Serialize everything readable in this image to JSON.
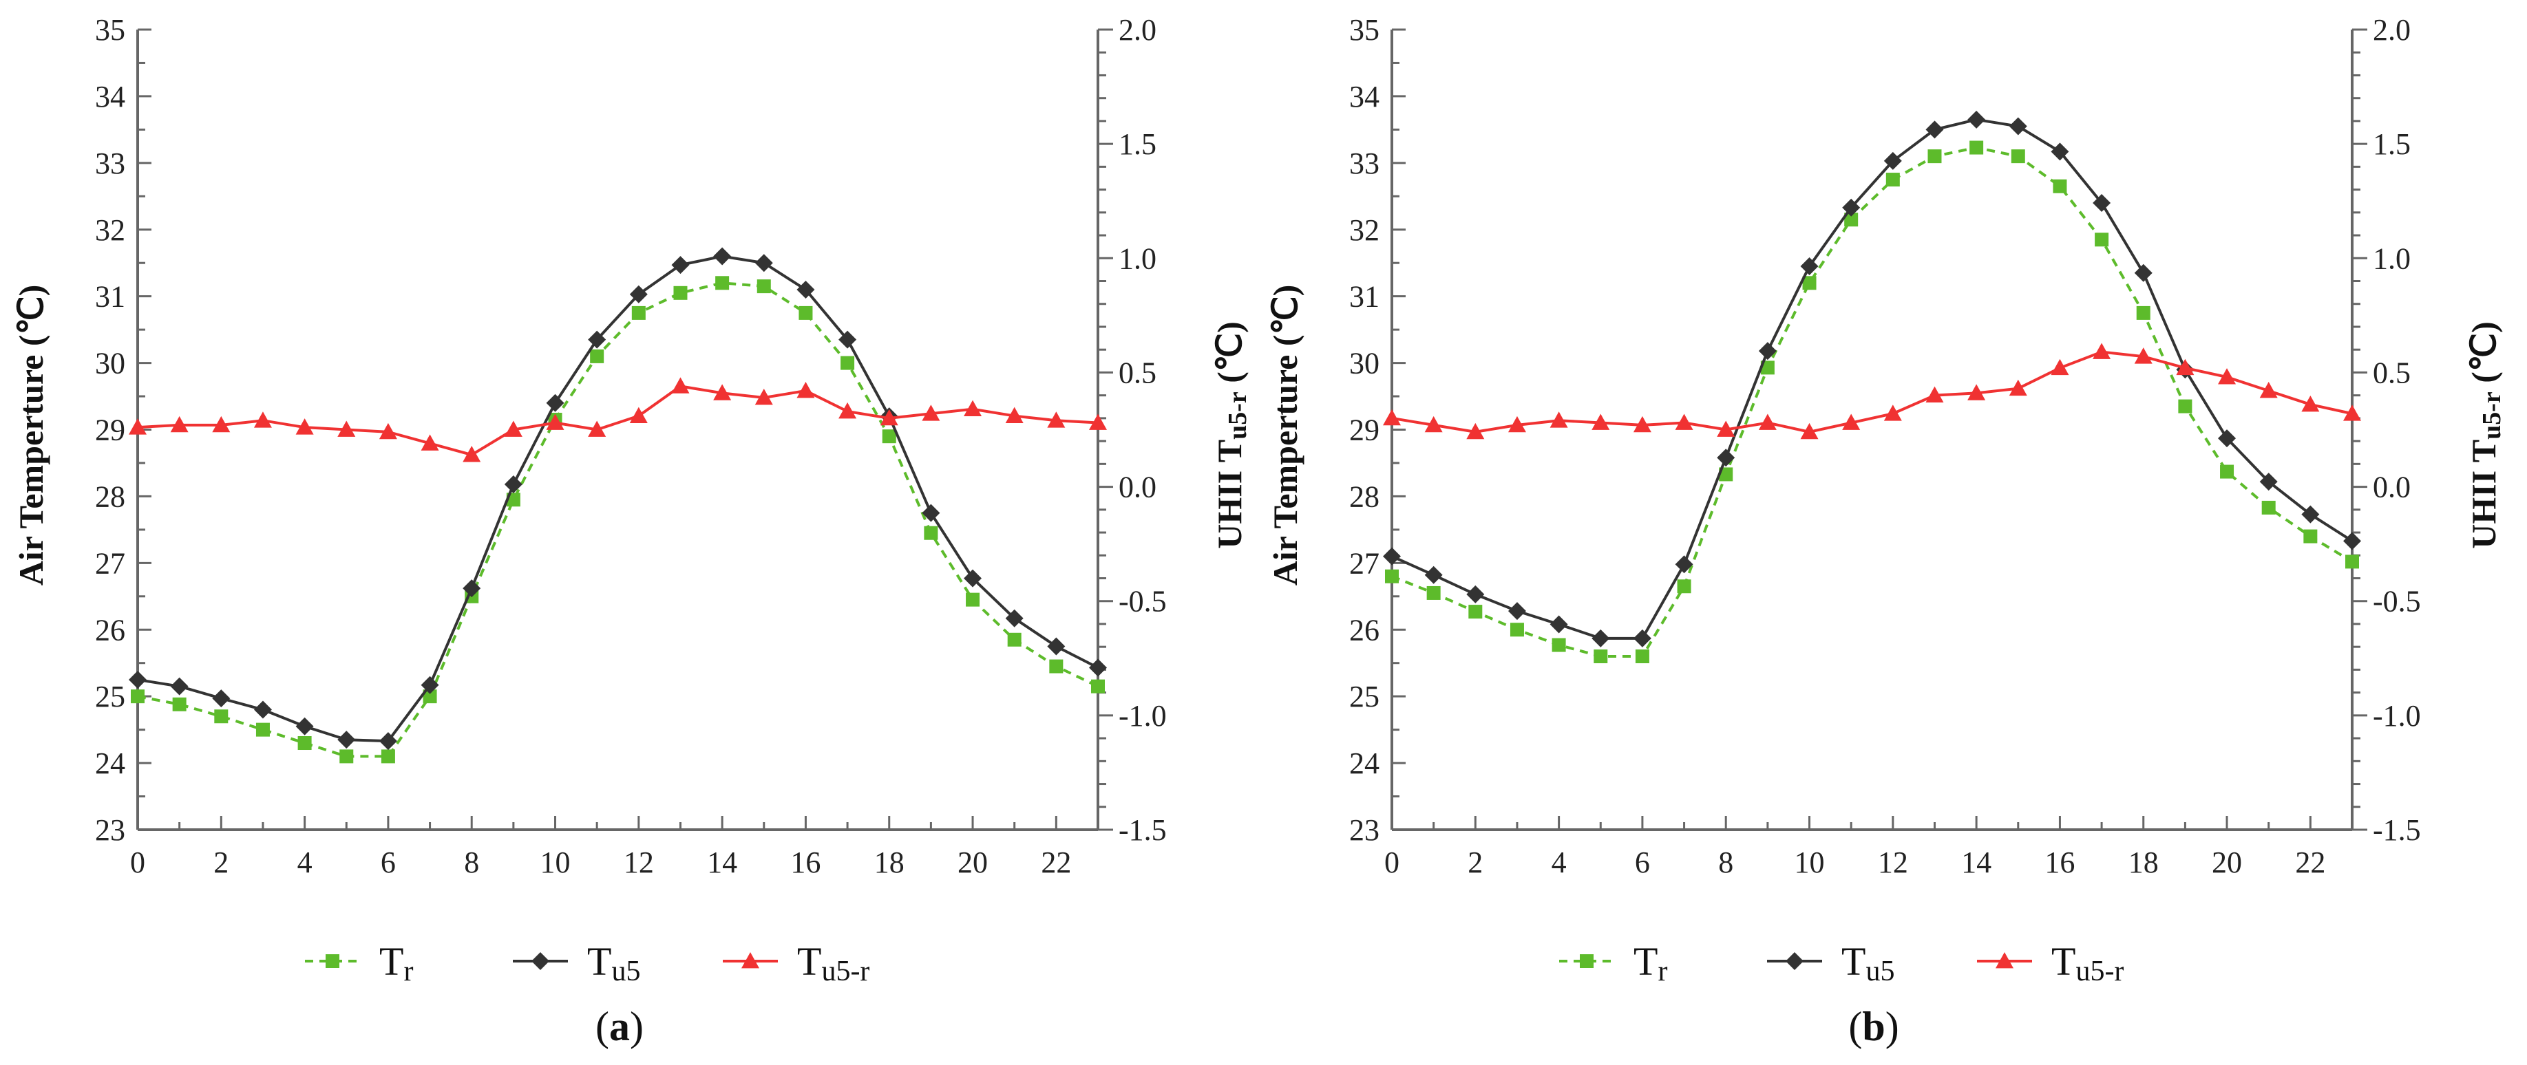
{
  "chart_data": [
    {
      "type": "line",
      "panel_label": "(a)",
      "panel_letter": "a",
      "xlabel": "",
      "ylabel": "Air Temperture (℃)",
      "ylabel_main": "Air Temperture (",
      "ylabel_unit": "℃)",
      "y2label": "UHII Tu5-r (℃)",
      "y2label_main": "UHII T",
      "y2label_sub": "u5-r",
      "y2label_unit": " (℃)",
      "xlim": [
        0,
        23
      ],
      "xticks": [
        0,
        2,
        4,
        6,
        8,
        10,
        12,
        14,
        16,
        18,
        20,
        22
      ],
      "ylim": [
        23,
        35
      ],
      "yticks": [
        23,
        24,
        25,
        26,
        27,
        28,
        29,
        30,
        31,
        32,
        33,
        34,
        35
      ],
      "y2lim": [
        -1.5,
        2.0
      ],
      "y2ticks": [
        "-1.5",
        "-1.0",
        "-0.5",
        "0.0",
        "0.5",
        "1.0",
        "1.5",
        "2.0"
      ],
      "grid": false,
      "x": [
        0,
        1,
        2,
        3,
        4,
        5,
        6,
        7,
        8,
        9,
        10,
        11,
        12,
        13,
        14,
        15,
        16,
        17,
        18,
        19,
        20,
        21,
        22,
        23
      ],
      "series": [
        {
          "name": "Tr",
          "base": "T",
          "sub": "r",
          "axis": "left",
          "color": "#5DBB2B",
          "marker": "square",
          "dashed": true,
          "values": [
            25.0,
            24.88,
            24.7,
            24.5,
            24.3,
            24.1,
            24.1,
            25.0,
            26.5,
            27.95,
            29.15,
            30.1,
            30.75,
            31.05,
            31.2,
            31.15,
            30.75,
            30.0,
            28.9,
            27.45,
            26.45,
            25.85,
            25.45,
            25.15
          ]
        },
        {
          "name": "Tu5",
          "base": "T",
          "sub": "u5",
          "axis": "left",
          "color": "#333333",
          "marker": "diamond",
          "dashed": false,
          "values": [
            25.25,
            25.15,
            24.97,
            24.8,
            24.55,
            24.35,
            24.33,
            25.17,
            26.62,
            28.18,
            29.4,
            30.35,
            31.03,
            31.47,
            31.6,
            31.5,
            31.1,
            30.35,
            29.2,
            27.75,
            26.77,
            26.17,
            25.75,
            25.43
          ]
        },
        {
          "name": "Tu5-r",
          "base": "T",
          "sub": "u5-r",
          "axis": "right",
          "color": "#F03232",
          "marker": "triangle",
          "dashed": false,
          "values": [
            0.26,
            0.27,
            0.27,
            0.29,
            0.26,
            0.25,
            0.24,
            0.19,
            0.14,
            0.25,
            0.28,
            0.25,
            0.31,
            0.44,
            0.41,
            0.39,
            0.42,
            0.33,
            0.3,
            0.32,
            0.34,
            0.31,
            0.29,
            0.28
          ]
        }
      ]
    },
    {
      "type": "line",
      "panel_label": "(b)",
      "panel_letter": "b",
      "xlabel": "",
      "ylabel": "Air Temperture (℃)",
      "ylabel_main": "Air Temperture (",
      "ylabel_unit": "℃)",
      "y2label": "UHII Tu5-r (℃)",
      "y2label_main": "UHII T",
      "y2label_sub": "u5-r",
      "y2label_unit": " (℃)",
      "xlim": [
        0,
        23
      ],
      "xticks": [
        0,
        2,
        4,
        6,
        8,
        10,
        12,
        14,
        16,
        18,
        20,
        22
      ],
      "ylim": [
        23,
        35
      ],
      "yticks": [
        23,
        24,
        25,
        26,
        27,
        28,
        29,
        30,
        31,
        32,
        33,
        34,
        35
      ],
      "y2lim": [
        -1.5,
        2.0
      ],
      "y2ticks": [
        "-1.5",
        "-1.0",
        "-0.5",
        "0.0",
        "0.5",
        "1.0",
        "1.5",
        "2.0"
      ],
      "grid": false,
      "x": [
        0,
        1,
        2,
        3,
        4,
        5,
        6,
        7,
        8,
        9,
        10,
        11,
        12,
        13,
        14,
        15,
        16,
        17,
        18,
        19,
        20,
        21,
        22,
        23
      ],
      "series": [
        {
          "name": "Tr",
          "base": "T",
          "sub": "r",
          "axis": "left",
          "color": "#5DBB2B",
          "marker": "square",
          "dashed": true,
          "values": [
            26.8,
            26.55,
            26.27,
            26.0,
            25.77,
            25.6,
            25.6,
            26.65,
            28.33,
            29.93,
            31.2,
            32.15,
            32.75,
            33.1,
            33.23,
            33.1,
            32.65,
            31.85,
            30.75,
            29.35,
            28.37,
            27.83,
            27.4,
            27.02
          ]
        },
        {
          "name": "Tu5",
          "base": "T",
          "sub": "u5",
          "axis": "left",
          "color": "#333333",
          "marker": "diamond",
          "dashed": false,
          "values": [
            27.1,
            26.82,
            26.53,
            26.28,
            26.08,
            25.87,
            25.87,
            26.98,
            28.58,
            30.18,
            31.45,
            32.33,
            33.03,
            33.5,
            33.65,
            33.55,
            33.17,
            32.4,
            31.35,
            29.9,
            28.87,
            28.22,
            27.73,
            27.33
          ]
        },
        {
          "name": "Tu5-r",
          "base": "T",
          "sub": "u5-r",
          "axis": "right",
          "color": "#F03232",
          "marker": "triangle",
          "dashed": false,
          "values": [
            0.3,
            0.27,
            0.24,
            0.27,
            0.29,
            0.28,
            0.27,
            0.28,
            0.25,
            0.28,
            0.24,
            0.28,
            0.32,
            0.4,
            0.41,
            0.43,
            0.52,
            0.59,
            0.57,
            0.52,
            0.48,
            0.42,
            0.36,
            0.32
          ]
        }
      ]
    }
  ]
}
